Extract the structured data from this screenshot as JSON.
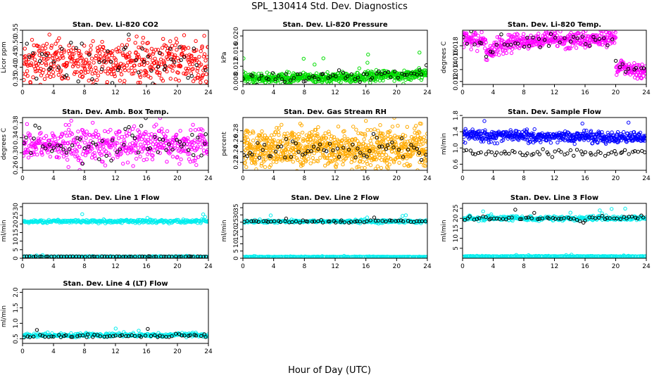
{
  "figure": {
    "title": "SPL_130414  Std. Dev. Diagnostics",
    "xlabel": "Hour of Day (UTC)"
  },
  "chart_data": [
    {
      "type": "scatter",
      "title": "Stan. Dev. Li-820 CO2",
      "ylabel": "Licor ppm",
      "xlim": [
        0,
        24
      ],
      "ylim": [
        0.33,
        0.55
      ],
      "xticks": [
        0,
        4,
        8,
        12,
        16,
        20,
        24
      ],
      "yticks": [
        0.35,
        0.4,
        0.45,
        0.5,
        0.55
      ],
      "ytick_labels": [
        "0.35",
        "0.40",
        "0.45",
        "0.50",
        "0.55"
      ],
      "series": [
        {
          "color": "#ff0000",
          "count": 500,
          "base": 0.42,
          "spread": 0.045,
          "segments": [
            [
              0,
              24,
              0.42,
              0.42
            ]
          ]
        },
        {
          "color": "#000000",
          "count": 60,
          "base": 0.42,
          "spread": 0.05,
          "segments": [
            [
              0,
              24,
              0.42,
              0.42
            ]
          ]
        }
      ]
    },
    {
      "type": "scatter",
      "title": "Stan. Dev. Li-820 Pressure",
      "ylabel": "kPa",
      "xlim": [
        0,
        24
      ],
      "ylim": [
        0.0072,
        0.0215
      ],
      "xticks": [
        0,
        4,
        8,
        12,
        16,
        20,
        24
      ],
      "yticks": [
        0.008,
        0.012,
        0.016,
        0.02
      ],
      "ytick_labels": [
        "0.008",
        "0.012",
        "0.016",
        "0.020"
      ],
      "series": [
        {
          "color": "#00dd00",
          "count": 600,
          "base": 0.0092,
          "spread": 0.0007,
          "segments": [
            [
              0,
              16,
              0.0088,
              0.009
            ],
            [
              16,
              24,
              0.0092,
              0.01
            ]
          ]
        },
        {
          "color": "#000000",
          "count": 60,
          "base": 0.0092,
          "spread": 0.0008,
          "segments": [
            [
              0,
              16,
              0.009,
              0.0092
            ],
            [
              16,
              24,
              0.0094,
              0.0102
            ]
          ]
        }
      ]
    },
    {
      "type": "scatter",
      "title": "Stan. Dev. Li-820 Temp.",
      "ylabel": "degrees C",
      "xlim": [
        0,
        24
      ],
      "ylim": [
        0.0115,
        0.0206
      ],
      "xticks": [
        0,
        4,
        8,
        12,
        16,
        20,
        24
      ],
      "yticks": [
        0.012,
        0.014,
        0.016,
        0.018
      ],
      "ytick_labels": [
        "0.012",
        "0.014",
        "0.016",
        "0.018"
      ],
      "series": [
        {
          "color": "#ff00ff",
          "count": 550,
          "base": 0.018,
          "spread": 0.0007,
          "segments": [
            [
              0,
              3,
              0.0195,
              0.0185
            ],
            [
              3,
              4,
              0.0165,
              0.0168
            ],
            [
              4,
              8,
              0.018,
              0.0188
            ],
            [
              8,
              20,
              0.0188,
              0.0192
            ],
            [
              20,
              21,
              0.015,
              0.0145
            ],
            [
              21,
              24,
              0.014,
              0.0138
            ]
          ]
        },
        {
          "color": "#000000",
          "count": 50,
          "base": 0.018,
          "spread": 0.0006,
          "segments": [
            [
              0,
              3,
              0.0195,
              0.0185
            ],
            [
              3,
              4,
              0.0165,
              0.0168
            ],
            [
              4,
              8,
              0.018,
              0.0188
            ],
            [
              8,
              20,
              0.0188,
              0.0192
            ],
            [
              20,
              21,
              0.015,
              0.0145
            ],
            [
              21,
              24,
              0.014,
              0.0138
            ]
          ]
        }
      ]
    },
    {
      "type": "scatter",
      "title": "Stan. Dev. Amb. Box Temp.",
      "ylabel": "degrees C",
      "xlim": [
        0,
        24
      ],
      "ylim": [
        0.253,
        0.394
      ],
      "xticks": [
        0,
        4,
        8,
        12,
        16,
        20,
        24
      ],
      "yticks": [
        0.26,
        0.3,
        0.34,
        0.38
      ],
      "ytick_labels": [
        "0.26",
        "0.30",
        "0.34",
        "0.38"
      ],
      "series": [
        {
          "color": "#ff00ff",
          "count": 500,
          "base": 0.32,
          "spread": 0.022,
          "segments": [
            [
              0,
              24,
              0.32,
              0.32
            ]
          ]
        },
        {
          "color": "#000000",
          "count": 60,
          "base": 0.32,
          "spread": 0.022,
          "segments": [
            [
              0,
              24,
              0.32,
              0.32
            ]
          ]
        }
      ]
    },
    {
      "type": "scatter",
      "title": "Stan. Dev. Gas Stream RH",
      "ylabel": "percent",
      "xlim": [
        0,
        24
      ],
      "ylim": [
        0.205,
        0.305
      ],
      "xticks": [
        0,
        4,
        8,
        12,
        16,
        20,
        24
      ],
      "yticks": [
        0.22,
        0.24,
        0.26,
        0.28
      ],
      "ytick_labels": [
        "0.22",
        "0.24",
        "0.26",
        "0.28"
      ],
      "series": [
        {
          "color": "#ffaa00",
          "count": 800,
          "base": 0.247,
          "spread": 0.018,
          "segments": [
            [
              0,
              24,
              0.247,
              0.247
            ]
          ]
        },
        {
          "color": "#000000",
          "count": 60,
          "base": 0.24,
          "spread": 0.012,
          "segments": [
            [
              0,
              24,
              0.24,
              0.24
            ]
          ]
        }
      ]
    },
    {
      "type": "scatter",
      "title": "Stan. Dev. Sample Flow",
      "ylabel": "ml/min",
      "xlim": [
        0,
        24
      ],
      "ylim": [
        0.45,
        1.75
      ],
      "xticks": [
        0,
        4,
        8,
        12,
        16,
        20,
        24
      ],
      "yticks": [
        0.6,
        1.0,
        1.4,
        1.8
      ],
      "ytick_labels": [
        "0.6",
        "1.0",
        "1.4",
        "1.8"
      ],
      "series": [
        {
          "color": "#0000ff",
          "count": 500,
          "base": 1.3,
          "spread": 0.07,
          "segments": [
            [
              0,
              24,
              1.32,
              1.25
            ]
          ]
        },
        {
          "color": "#000000",
          "count": 60,
          "base": 0.88,
          "spread": 0.04,
          "segments": [
            [
              0,
              24,
              0.88,
              0.88
            ]
          ]
        }
      ]
    },
    {
      "type": "scatter",
      "title": "Stan. Dev. Line 1 Flow",
      "ylabel": "ml/min",
      "xlim": [
        0,
        24
      ],
      "ylim": [
        0,
        32
      ],
      "xticks": [
        0,
        4,
        8,
        12,
        16,
        20,
        24
      ],
      "yticks": [
        0,
        5,
        10,
        15,
        20,
        25,
        30
      ],
      "ytick_labels": [
        "0",
        "5",
        "10",
        "15",
        "20",
        "25",
        "30"
      ],
      "series": [
        {
          "color": "#00eeee",
          "count": 300,
          "base": 21.5,
          "spread": 0.5,
          "segments": [
            [
              0,
              24,
              21.5,
              21.5
            ]
          ]
        },
        {
          "color": "#00eeee",
          "count": 200,
          "base": 1.0,
          "spread": 0.1,
          "segments": [
            [
              0,
              24,
              1.0,
              1.0
            ]
          ]
        },
        {
          "color": "#000000",
          "count": 60,
          "base": 1.0,
          "spread": 0.1,
          "segments": [
            [
              0,
              24,
              1.0,
              1.0
            ]
          ]
        }
      ]
    },
    {
      "type": "scatter",
      "title": "Stan. Dev. Line 2 Flow",
      "ylabel": "ml/min",
      "xlim": [
        0,
        24
      ],
      "ylim": [
        0,
        38
      ],
      "xticks": [
        0,
        4,
        8,
        12,
        16,
        20,
        24
      ],
      "yticks": [
        0,
        5,
        10,
        15,
        20,
        25,
        30,
        35
      ],
      "ytick_labels": [
        "0",
        "5",
        "10",
        "15",
        "20",
        "25",
        "30",
        "35"
      ],
      "series": [
        {
          "color": "#00eeee",
          "count": 300,
          "base": 25.5,
          "spread": 0.5,
          "segments": [
            [
              0,
              24,
              25.5,
              25.5
            ]
          ]
        },
        {
          "color": "#00eeee",
          "count": 200,
          "base": 1.0,
          "spread": 0.1,
          "segments": [
            [
              0,
              24,
              1.0,
              1.0
            ]
          ]
        },
        {
          "color": "#000000",
          "count": 60,
          "base": 25.5,
          "spread": 0.4,
          "segments": [
            [
              0,
              24,
              25.5,
              25.5
            ]
          ]
        }
      ]
    },
    {
      "type": "scatter",
      "title": "Stan. Dev. Line 3 Flow",
      "ylabel": "ml/min",
      "xlim": [
        0,
        24
      ],
      "ylim": [
        0,
        27.5
      ],
      "xticks": [
        0,
        4,
        8,
        12,
        16,
        20,
        24
      ],
      "yticks": [
        5,
        10,
        15,
        20,
        25
      ],
      "ytick_labels": [
        "5",
        "10",
        "15",
        "20",
        "25"
      ],
      "series": [
        {
          "color": "#00eeee",
          "count": 300,
          "base": 20.0,
          "spread": 0.6,
          "segments": [
            [
              0,
              24,
              20.0,
              20.0
            ]
          ]
        },
        {
          "color": "#00eeee",
          "count": 200,
          "base": 1.0,
          "spread": 0.1,
          "segments": [
            [
              0,
              24,
              1.0,
              1.0
            ]
          ]
        },
        {
          "color": "#000000",
          "count": 60,
          "base": 20.0,
          "spread": 0.5,
          "segments": [
            [
              0,
              15,
              20.0,
              20.0
            ],
            [
              15,
              16,
              18.0,
              18.5
            ],
            [
              16,
              24,
              20.0,
              20.5
            ]
          ]
        }
      ]
    },
    {
      "type": "scatter",
      "title": "Stan. Dev. Line 4 (LT) Flow",
      "ylabel": "ml/min",
      "xlim": [
        0,
        24
      ],
      "ylim": [
        0.35,
        2.1
      ],
      "xticks": [
        0,
        4,
        8,
        12,
        16,
        20,
        24
      ],
      "yticks": [
        0.5,
        1.0,
        1.5,
        2.0
      ],
      "ytick_labels": [
        "0.5",
        "1.0",
        "1.5",
        "2.0"
      ],
      "series": [
        {
          "color": "#00eeee",
          "count": 300,
          "base": 0.62,
          "spread": 0.03,
          "segments": [
            [
              0,
              24,
              0.62,
              0.62
            ]
          ]
        },
        {
          "color": "#000000",
          "count": 60,
          "base": 0.58,
          "spread": 0.03,
          "segments": [
            [
              0,
              24,
              0.58,
              0.58
            ]
          ]
        }
      ]
    }
  ]
}
